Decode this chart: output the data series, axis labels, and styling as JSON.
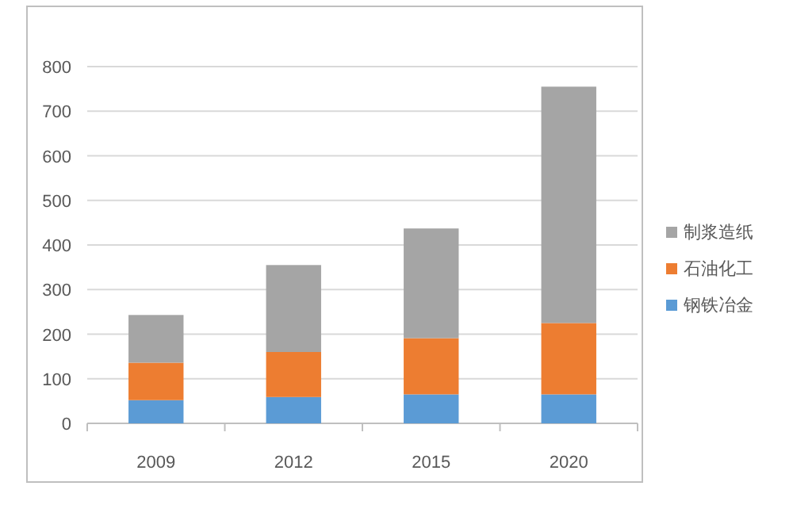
{
  "chart_data": {
    "type": "bar",
    "stacked": true,
    "categories": [
      "2009",
      "2012",
      "2015",
      "2020"
    ],
    "series": [
      {
        "name": "钢铁冶金",
        "color": "#5b9bd5",
        "values": [
          52,
          59,
          65,
          65
        ]
      },
      {
        "name": "石油化工",
        "color": "#ed7d31",
        "values": [
          84,
          101,
          126,
          160
        ]
      },
      {
        "name": "制浆造纸",
        "color": "#a5a5a5",
        "values": [
          107,
          195,
          246,
          530
        ]
      }
    ],
    "ylim": [
      0,
      800
    ],
    "yticks": [
      0,
      100,
      200,
      300,
      400,
      500,
      600,
      700,
      800
    ],
    "grid": "y",
    "legend": "right"
  }
}
